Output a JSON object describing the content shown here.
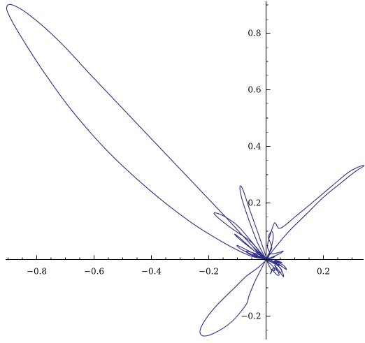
{
  "chart_data": {
    "type": "line",
    "plot_kind": "polar curve",
    "title": "",
    "xlabel": "",
    "ylabel": "",
    "xlim": [
      -0.92,
      0.36
    ],
    "ylim": [
      -0.28,
      0.93
    ],
    "grid": false,
    "axes_origin": [
      0,
      0
    ],
    "line_color": "#2e2e8c",
    "x_ticks": [
      {
        "value": -0.8,
        "label": "−0.8"
      },
      {
        "value": -0.6,
        "label": "−0.6"
      },
      {
        "value": -0.4,
        "label": "−0.4"
      },
      {
        "value": -0.2,
        "label": "−0.2"
      },
      {
        "value": 0.2,
        "label": "0.2"
      }
    ],
    "y_ticks": [
      {
        "value": -0.2,
        "label": "−0.2"
      },
      {
        "value": 0.2,
        "label": "0.2"
      },
      {
        "value": 0.4,
        "label": "0.4"
      },
      {
        "value": 0.6,
        "label": "0.6"
      },
      {
        "value": 0.8,
        "label": "0.8"
      }
    ],
    "series": [
      {
        "x": [
          0,
          -0.05,
          -0.15,
          -0.3,
          -0.45,
          -0.6,
          -0.72,
          -0.82,
          -0.885,
          -0.905,
          -0.89,
          -0.85,
          -0.78,
          -0.68,
          -0.55,
          -0.4,
          -0.26,
          -0.14,
          -0.06,
          -0.01,
          0,
          -0.03,
          -0.06,
          -0.08,
          -0.09,
          -0.09,
          -0.08,
          -0.055,
          -0.02,
          0,
          -0.05,
          -0.12,
          -0.17,
          -0.18,
          -0.15,
          -0.1,
          -0.04,
          0,
          -0.04,
          -0.09,
          -0.11,
          -0.09,
          -0.04,
          0,
          -0.05,
          -0.1,
          -0.085,
          -0.03,
          0,
          -0.025,
          -0.045,
          -0.02,
          0,
          -0.02,
          -0.05,
          -0.07,
          -0.06,
          -0.03,
          0,
          -0.02,
          -0.045,
          -0.02,
          0,
          -0.03,
          -0.07,
          -0.11,
          -0.17,
          -0.21,
          -0.23,
          -0.22,
          -0.18,
          -0.12,
          -0.07,
          -0.06,
          -0.04,
          -0.01,
          0,
          0.005,
          0.012,
          0.02,
          0.015,
          0.025,
          0.03,
          0.02,
          0.04,
          0.045,
          0.03,
          0.06,
          0.055,
          0.035,
          0.07,
          0.06,
          0.03,
          0.055,
          0.045,
          0.02,
          0.03,
          0.045,
          0.05,
          0.03,
          0.015,
          0.008,
          0.012,
          0.02,
          0.025,
          0.02,
          0.008,
          0.015,
          0.02,
          0.012,
          0.003,
          0,
          0.01,
          0.012,
          0.01,
          0,
          0.03,
          0.08,
          0.14,
          0.2,
          0.26,
          0.31,
          0.34,
          0.33,
          0.29,
          0.23,
          0.16,
          0.1,
          0.065,
          0.045,
          0.035,
          0.03,
          0.025,
          0.015,
          0.005,
          0.01,
          0.02,
          0.045,
          0.06,
          0.05,
          0.02,
          0,
          0.02,
          0.045,
          0.055,
          0.045,
          0.02,
          0,
          0.025,
          0.04,
          0.03,
          0.01,
          0,
          0.02,
          0.03,
          0.015,
          0
        ],
        "y": [
          0,
          0.05,
          0.16,
          0.32,
          0.48,
          0.64,
          0.77,
          0.86,
          0.9,
          0.89,
          0.85,
          0.78,
          0.67,
          0.53,
          0.38,
          0.24,
          0.13,
          0.055,
          0.015,
          0.002,
          0,
          0.06,
          0.14,
          0.2,
          0.24,
          0.26,
          0.245,
          0.17,
          0.07,
          0,
          0.06,
          0.11,
          0.15,
          0.165,
          0.155,
          0.12,
          0.05,
          0,
          0.03,
          0.07,
          0.09,
          0.075,
          0.03,
          0,
          0.025,
          0.05,
          0.035,
          0.01,
          0,
          0.02,
          0.045,
          0.02,
          0,
          0.015,
          0.025,
          0.03,
          0.02,
          0.008,
          0,
          0.01,
          0.02,
          0.008,
          0,
          -0.03,
          -0.06,
          -0.1,
          -0.16,
          -0.21,
          -0.25,
          -0.27,
          -0.26,
          -0.22,
          -0.16,
          -0.13,
          -0.08,
          -0.02,
          0,
          -0.01,
          -0.025,
          -0.04,
          -0.05,
          -0.03,
          -0.04,
          -0.035,
          -0.055,
          -0.05,
          -0.02,
          -0.06,
          -0.04,
          -0.01,
          -0.035,
          -0.02,
          -0.005,
          -0.012,
          -0.006,
          0,
          -0.015,
          -0.02,
          -0.022,
          -0.012,
          -0.004,
          0,
          0.025,
          0.05,
          0.08,
          0.1,
          0.08,
          0.06,
          0.04,
          0.025,
          0.008,
          0,
          0.015,
          0.022,
          0.018,
          0,
          0.04,
          0.1,
          0.16,
          0.22,
          0.27,
          0.31,
          0.33,
          0.33,
          0.31,
          0.26,
          0.2,
          0.15,
          0.12,
          0.11,
          0.125,
          0.13,
          0.12,
          0.09,
          0.05,
          0.03,
          0.02,
          0.025,
          0.03,
          0.022,
          0.008,
          0,
          -0.01,
          -0.025,
          -0.04,
          -0.045,
          -0.02,
          0,
          -0.008,
          -0.012,
          -0.008,
          -0.002,
          0,
          0.005,
          0.01,
          0.006,
          0
        ]
      }
    ]
  }
}
